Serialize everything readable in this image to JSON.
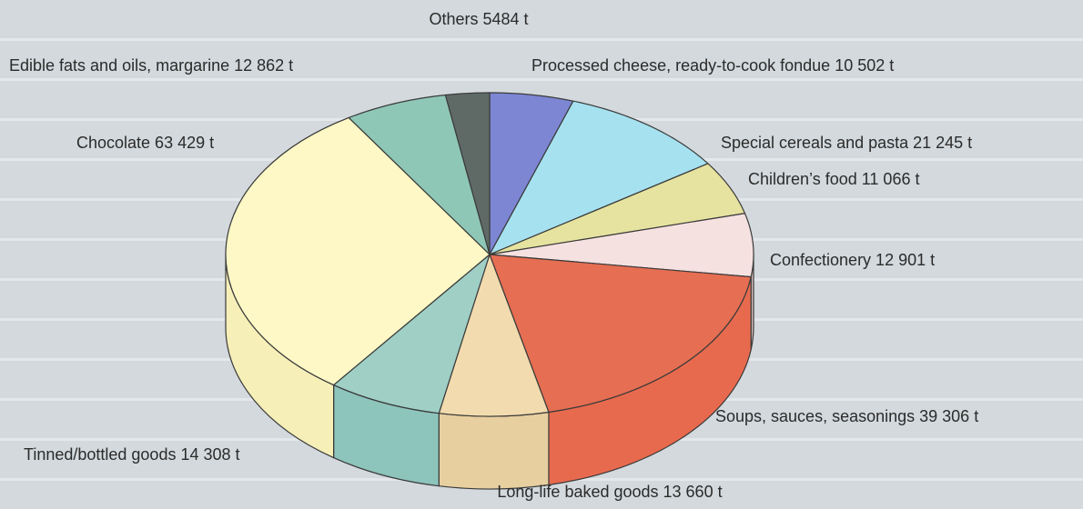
{
  "chart_data": {
    "type": "pie",
    "title": "",
    "unit": "t",
    "slices": [
      {
        "name": "Processed cheese, ready-to-cook fondue",
        "value": 10502,
        "label": "Processed cheese, ready-to-cook fondue 10 502 t",
        "color": "#7d86d3",
        "side": "#5f67a8"
      },
      {
        "name": "Special cereals and pasta",
        "value": 21245,
        "label": "Special cereals and pasta 21 245 t",
        "color": "#a6e1f0",
        "side": "#7fbfd0"
      },
      {
        "name": "Children's food",
        "value": 11066,
        "label": "Children’s food 11 066 t",
        "color": "#e6e3a0",
        "side": "#c6c27e"
      },
      {
        "name": "Confectionery",
        "value": 12901,
        "label": "Confectionery 12 901 t",
        "color": "#f6e1e1",
        "side": "#d8bdbd"
      },
      {
        "name": "Soups, sauces, seasonings",
        "value": 39306,
        "label": "Soups, sauces, seasonings 39 306 t",
        "color": "#e66e52",
        "side": "#e86a4e"
      },
      {
        "name": "Long-life baked goods",
        "value": 13660,
        "label": "Long-life baked goods 13 660 t",
        "color": "#f2dbae",
        "side": "#e7cf9f"
      },
      {
        "name": "Tinned/bottled goods",
        "value": 14308,
        "label": "Tinned/bottled goods 14 308 t",
        "color": "#9fcfc5",
        "side": "#8dc4bb"
      },
      {
        "name": "Chocolate",
        "value": 63429,
        "label": "Chocolate 63 429 t",
        "color": "#fdf8c5",
        "side": "#f6efb8"
      },
      {
        "name": "Edible fats and oils, margarine",
        "value": 12862,
        "label": "Edible fats and oils, margarine 12 862 t",
        "color": "#8fc7b6",
        "side": "#76ad9c"
      },
      {
        "name": "Others",
        "value": 5484,
        "label": "Others 5484 t",
        "color": "#5f6a66",
        "side": "#4a524f"
      }
    ]
  }
}
